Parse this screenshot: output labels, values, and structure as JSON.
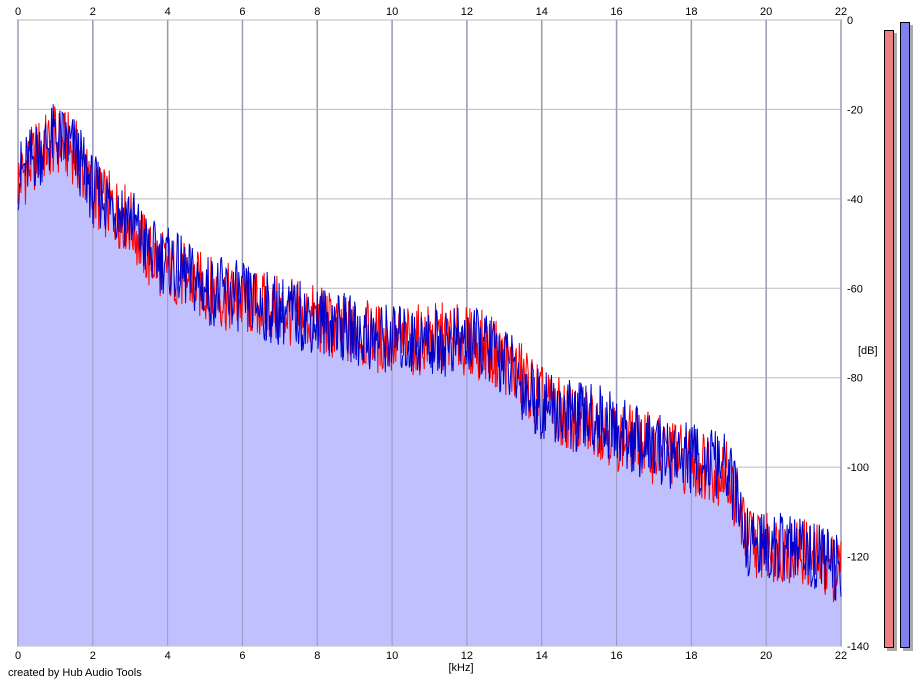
{
  "colors": {
    "left_channel": "#ff0000",
    "right_channel": "#0000cc",
    "fill": "#c0c0ff",
    "meter_left": "#f08080",
    "meter_right": "#8080ee",
    "grid": "#999999"
  },
  "credit": "created by Hub Audio Tools",
  "chart_data": {
    "type": "line",
    "xlabel": "[kHz]",
    "ylabel": "[dB]",
    "xlim": [
      0,
      22
    ],
    "ylim": [
      -140,
      0
    ],
    "grid": true,
    "x_ticks": [
      "0",
      "2",
      "4",
      "6",
      "8",
      "10",
      "12",
      "14",
      "16",
      "18",
      "20",
      "22"
    ],
    "y_ticks": [
      "0",
      "-20",
      "-40",
      "-60",
      "-80",
      "-100",
      "-120",
      "-140"
    ],
    "x": [
      0,
      0.5,
      1,
      1.5,
      2,
      2.5,
      3,
      3.5,
      4,
      4.5,
      5,
      5.5,
      6,
      6.5,
      7,
      7.5,
      8,
      8.5,
      9,
      9.5,
      10,
      10.5,
      11,
      11.5,
      12,
      12.5,
      13,
      13.5,
      14,
      14.5,
      15,
      15.5,
      16,
      16.5,
      17,
      17.5,
      18,
      18.5,
      19,
      19.5,
      20,
      20.5,
      21,
      21.5,
      22
    ],
    "series": [
      {
        "values": [
          -36,
          -30,
          -27,
          -29,
          -39,
          -42,
          -45,
          -53,
          -55,
          -58,
          -60,
          -62,
          -63,
          -64,
          -65,
          -66,
          -67,
          -69,
          -70,
          -71,
          -72,
          -72,
          -71,
          -71,
          -72,
          -73,
          -76,
          -80,
          -85,
          -88,
          -90,
          -90,
          -93,
          -94,
          -96,
          -97,
          -99,
          -100,
          -102,
          -116,
          -118,
          -118,
          -119,
          -121,
          -123
        ]
      },
      {
        "values": [
          -35,
          -30,
          -26,
          -29,
          -38,
          -41,
          -44,
          -52,
          -54,
          -57,
          -60,
          -61,
          -62,
          -64,
          -65,
          -66,
          -67,
          -68,
          -70,
          -71,
          -71,
          -72,
          -72,
          -72,
          -72,
          -73,
          -76,
          -82,
          -86,
          -88,
          -89,
          -89,
          -92,
          -94,
          -96,
          -97,
          -98,
          -99,
          -101,
          -117,
          -118,
          -118,
          -119,
          -120,
          -124
        ]
      }
    ]
  }
}
